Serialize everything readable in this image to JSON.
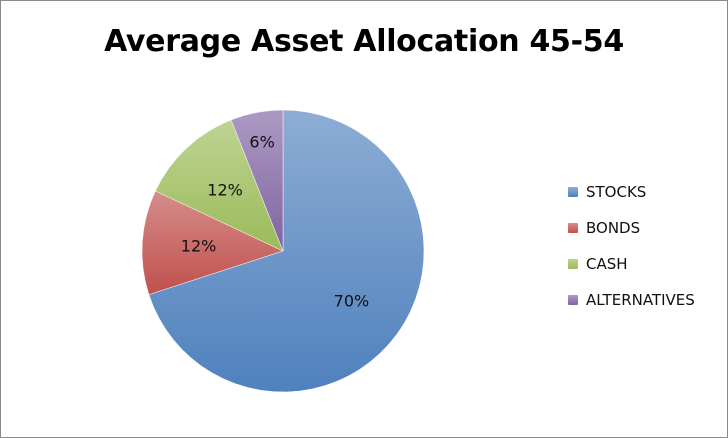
{
  "chart_data": {
    "type": "pie",
    "title": "Average Asset Allocation 45-54",
    "categories": [
      "STOCKS",
      "BONDS",
      "CASH",
      "ALTERNATIVES"
    ],
    "values": [
      70,
      12,
      12,
      6
    ],
    "labels": [
      "70%",
      "12%",
      "12%",
      "6%"
    ],
    "colors": [
      "#4f81bd",
      "#c0504d",
      "#9bbb59",
      "#8064a2"
    ],
    "legend_position": "right"
  }
}
